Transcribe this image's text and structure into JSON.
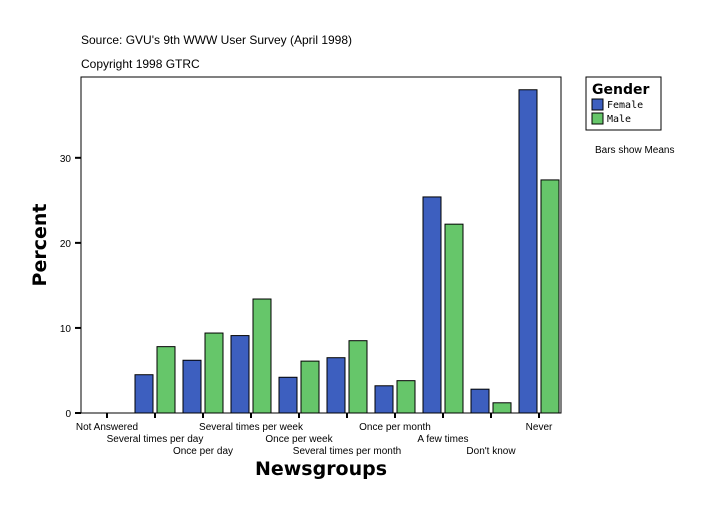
{
  "header": {
    "source": "Source: GVU's 9th WWW User Survey (April 1998)",
    "copyright": "Copyright 1998 GTRC"
  },
  "note": "Bars show Means",
  "chart_data": {
    "type": "bar",
    "title": "",
    "xlabel": "Newsgroups",
    "ylabel": "Percent",
    "ylim": [
      0,
      39.5
    ],
    "yticks": [
      0,
      10,
      20,
      30
    ],
    "grid": false,
    "legend": {
      "title": "Gender",
      "position": "top-right"
    },
    "categories": [
      "Not Answered",
      "Several times per day",
      "Once per day",
      "Several times per week",
      "Once per week",
      "Several times per month",
      "Once per month",
      "A few times",
      "Don't know",
      "Never"
    ],
    "series": [
      {
        "name": "Female",
        "color": "#3d5fbf",
        "values": [
          0,
          4.5,
          6.2,
          9.1,
          4.2,
          6.5,
          3.2,
          25.4,
          2.8,
          38.0
        ]
      },
      {
        "name": "Male",
        "color": "#66c66a",
        "values": [
          0,
          7.8,
          9.4,
          13.4,
          6.1,
          8.5,
          3.8,
          22.2,
          1.2,
          27.4
        ]
      }
    ]
  }
}
